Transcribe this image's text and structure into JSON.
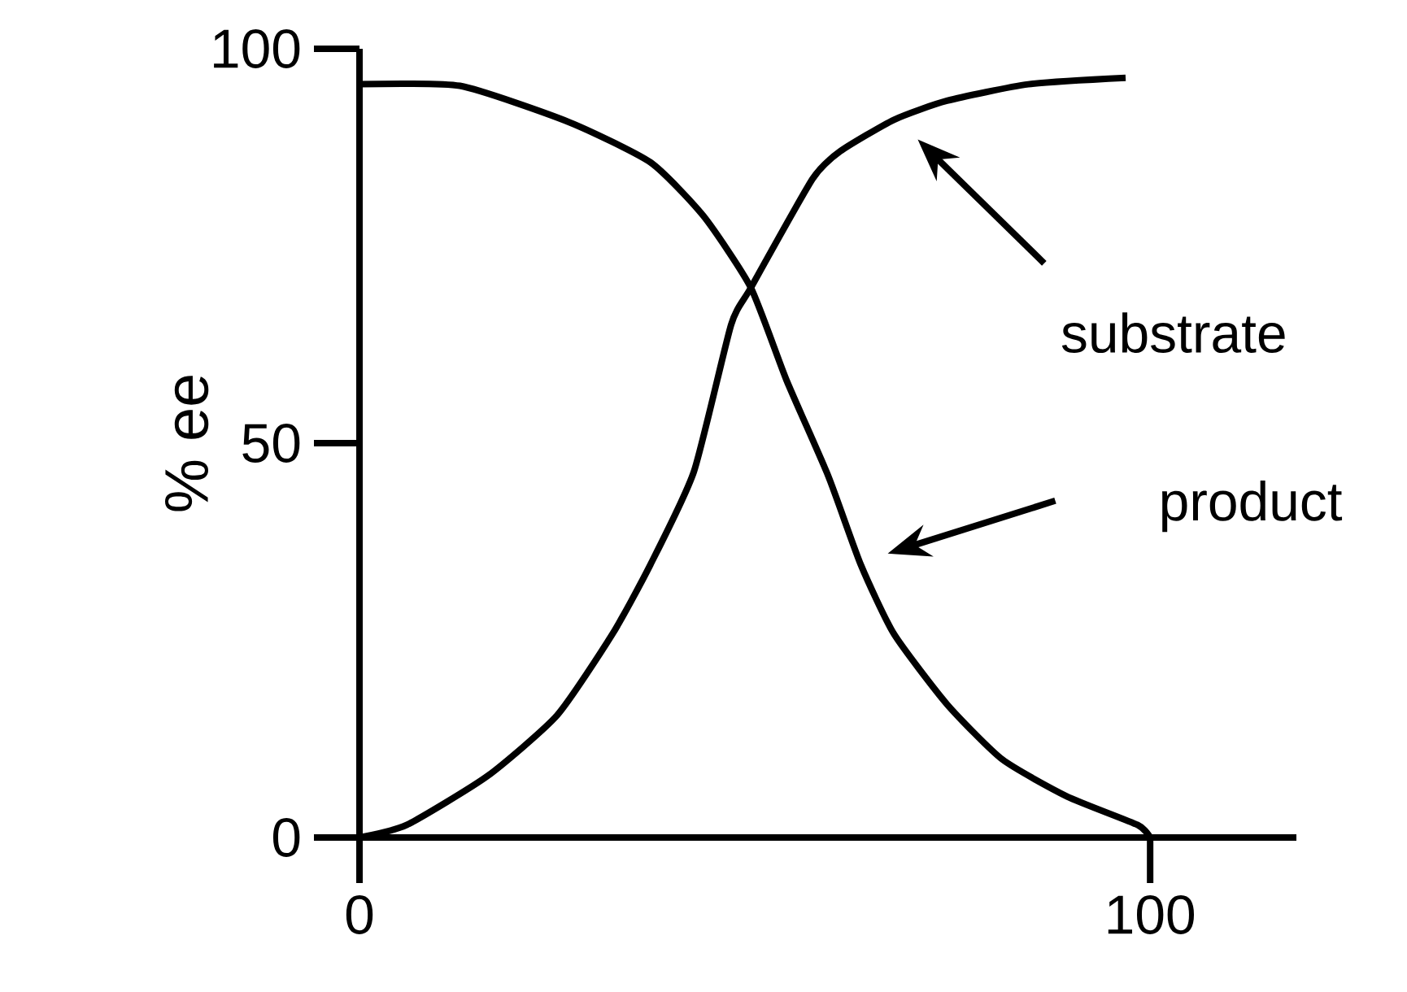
{
  "chart_data": {
    "type": "line",
    "ylabel": "% ee",
    "xlim": [
      0,
      118.5
    ],
    "ylim": [
      0,
      100
    ],
    "xticks": [
      0,
      100
    ],
    "yticks": [
      0,
      50,
      100
    ],
    "annotations": [
      "substrate",
      "product"
    ],
    "grid": false,
    "marker": "none",
    "line_style": "solid",
    "series": [
      {
        "color": "#000000",
        "x": [
          0,
          6,
          16.2,
          25,
          32,
          36.8,
          42.3,
          47,
          49.5,
          57.3,
          60.8,
          67.6,
          74.3,
          84.6,
          96.9
        ],
        "values": [
          0,
          1.6,
          7.8,
          15.5,
          25.8,
          34.6,
          46.4,
          65,
          69.7,
          83.5,
          87,
          91,
          93.4,
          95.5,
          96.3
        ]
      },
      {
        "color": "#000000",
        "x": [
          0,
          12.7,
          26.5,
          36.8,
          43.5,
          49.5,
          54,
          59.3,
          63.4,
          67.6,
          74.3,
          81.3,
          89.5,
          98.4,
          100
        ],
        "values": [
          95.5,
          95.3,
          90.7,
          85.6,
          78.8,
          69.7,
          58,
          45.8,
          34.6,
          25.8,
          16.9,
          9.9,
          5.2,
          1.6,
          0
        ]
      }
    ]
  }
}
